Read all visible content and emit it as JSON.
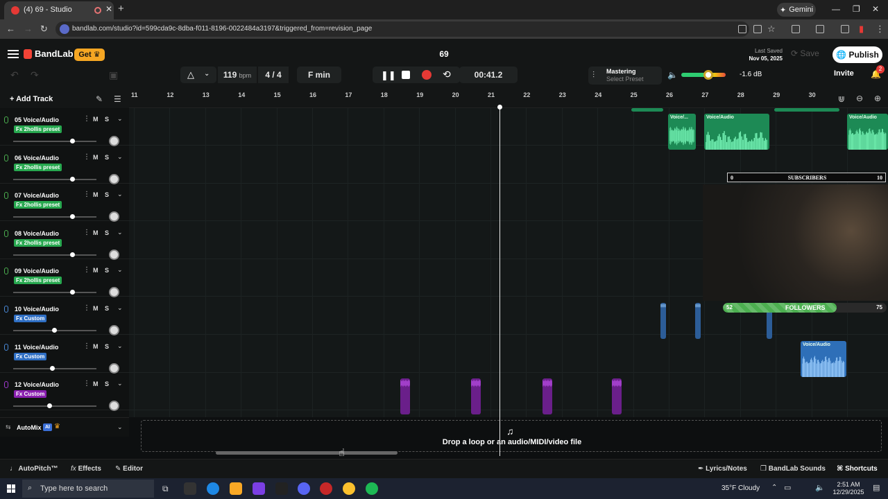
{
  "browser": {
    "tab_title": "(4) 69 - Studio",
    "url": "bandlab.com/studio?id=599cda9c-8dba-f011-8196-0022484a3197&triggered_from=revision_page",
    "gemini_label": "Gemini"
  },
  "header": {
    "logo_text": "BandLab",
    "get_label": "Get",
    "project_title": "69",
    "last_saved_label": "Last Saved",
    "last_saved_date": "Nov 05, 2025",
    "save_label": "Save",
    "publish_label": "Publish",
    "invite_label": "Invite",
    "notification_count": "2"
  },
  "transport": {
    "tempo": "119",
    "tempo_unit": "bpm",
    "time_signature": "4 / 4",
    "key": "F min",
    "time": "00:41.2",
    "mastering_label": "Mastering",
    "mastering_preset": "Select Preset",
    "volume_db": "-1.6 dB"
  },
  "add_track_label": "Add Track",
  "ruler_ticks": [
    "11",
    "12",
    "13",
    "14",
    "15",
    "16",
    "17",
    "18",
    "19",
    "20",
    "21",
    "22",
    "23",
    "24",
    "25",
    "26",
    "27",
    "28",
    "29",
    "30"
  ],
  "tracks": [
    {
      "name": "05 Voice/Audio",
      "fx": "Fx 2hollis preset",
      "fx_color": "#27a84f",
      "mic_color": "#4caf50",
      "volume": 0.71
    },
    {
      "name": "06 Voice/Audio",
      "fx": "Fx 2hollis preset",
      "fx_color": "#27a84f",
      "mic_color": "#4caf50",
      "volume": 0.71
    },
    {
      "name": "07 Voice/Audio",
      "fx": "Fx 2hollis preset",
      "fx_color": "#27a84f",
      "mic_color": "#4caf50",
      "volume": 0.71
    },
    {
      "name": "08 Voice/Audio",
      "fx": "Fx 2hollis preset",
      "fx_color": "#27a84f",
      "mic_color": "#4caf50",
      "volume": 0.71
    },
    {
      "name": "09 Voice/Audio",
      "fx": "Fx 2hollis preset",
      "fx_color": "#27a84f",
      "mic_color": "#4caf50",
      "volume": 0.71
    },
    {
      "name": "10 Voice/Audio",
      "fx": "Fx Custom",
      "fx_color": "#2f6fc4",
      "mic_color": "#4a8ad8",
      "volume": 0.49
    },
    {
      "name": "11 Voice/Audio",
      "fx": "Fx Custom",
      "fx_color": "#2f6fc4",
      "mic_color": "#4a8ad8",
      "volume": 0.47
    },
    {
      "name": "12 Voice/Audio",
      "fx": "Fx Custom",
      "fx_color": "#8a1fb0",
      "mic_color": "#a03ad0",
      "volume": 0.43
    }
  ],
  "mute_label": "M",
  "solo_label": "S",
  "automix_label": "AutoMix",
  "automix_ai": "AI",
  "clip_label": "Voice/Audio",
  "clip_label_short": "Voice/...",
  "overlay": {
    "subs_min": "0",
    "subs_label": "SUBSCRIBERS",
    "subs_max": "10",
    "followers_value": "52",
    "followers_label": "FOLLOWERS",
    "followers_max": "75",
    "followers_fraction": 0.693
  },
  "dropzone_label": "Drop a loop or an audio/MIDI/video file",
  "bottom": {
    "autopitch": "AutoPitch™",
    "effects": "Effects",
    "editor": "Editor",
    "lyrics": "Lyrics/Notes",
    "sounds": "BandLab Sounds",
    "shortcuts": "Shortcuts"
  },
  "taskbar": {
    "search_placeholder": "Type here to search",
    "weather": "35°F  Cloudy",
    "time": "2:51 AM",
    "date": "12/29/2025"
  },
  "colors": {
    "green_clip": "#1d8a55",
    "blue_clip": "#2e6fb8",
    "purple_clip": "#6a1f8a",
    "accent_orange": "#f5a623"
  }
}
